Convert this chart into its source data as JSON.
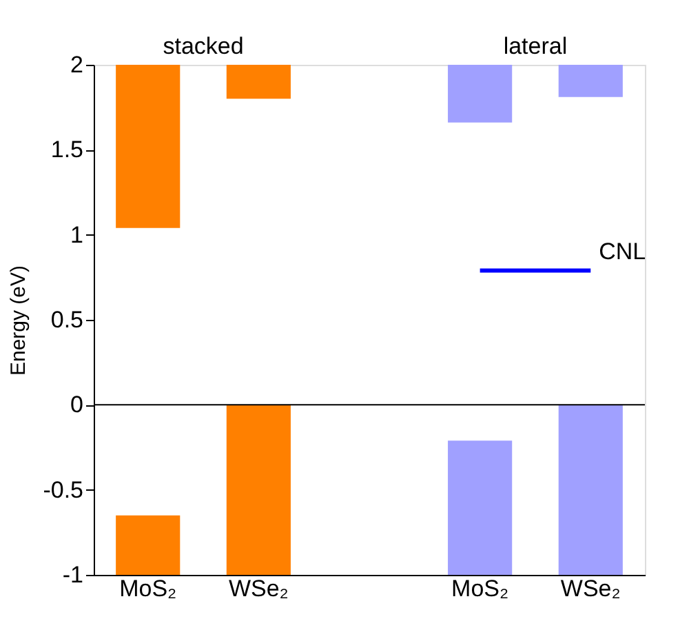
{
  "chart_data": {
    "type": "bar",
    "ylabel": "Energy (eV)",
    "categories": [
      "MoS₂",
      "WSe₂",
      null,
      "MoS₂",
      "WSe₂"
    ],
    "series": [
      {
        "color": "#ff8000",
        "base": [
          1.04,
          1.8,
          null,
          null,
          null
        ],
        "values": [
          0.96,
          0.2,
          null,
          null,
          null
        ]
      },
      {
        "color": "#ff8000",
        "base": [
          -1,
          -1,
          null,
          null,
          null
        ],
        "values": [
          0.35,
          1.0,
          null,
          null,
          null
        ]
      },
      {
        "color": "#a0a0ff",
        "base": [
          null,
          null,
          null,
          1.66,
          1.81
        ],
        "values": [
          null,
          null,
          null,
          0.34,
          0.19
        ]
      },
      {
        "color": "#a0a0ff",
        "base": [
          null,
          null,
          null,
          -1,
          -1
        ],
        "values": [
          null,
          null,
          null,
          0.79,
          1.0
        ]
      },
      {
        "type": "line",
        "name": "CNL",
        "color": "#0000ff",
        "values": [
          null,
          null,
          null,
          0.79,
          0.79
        ]
      }
    ],
    "ylim": [
      -1,
      2
    ],
    "yticks": [
      -1,
      -0.5,
      0,
      0.5,
      1,
      1.5,
      2
    ],
    "ref_lines": [
      {
        "axis": "y",
        "value": 0,
        "color": "#000000"
      }
    ],
    "annotations": [
      "stacked",
      "lateral"
    ],
    "grid": false
  }
}
